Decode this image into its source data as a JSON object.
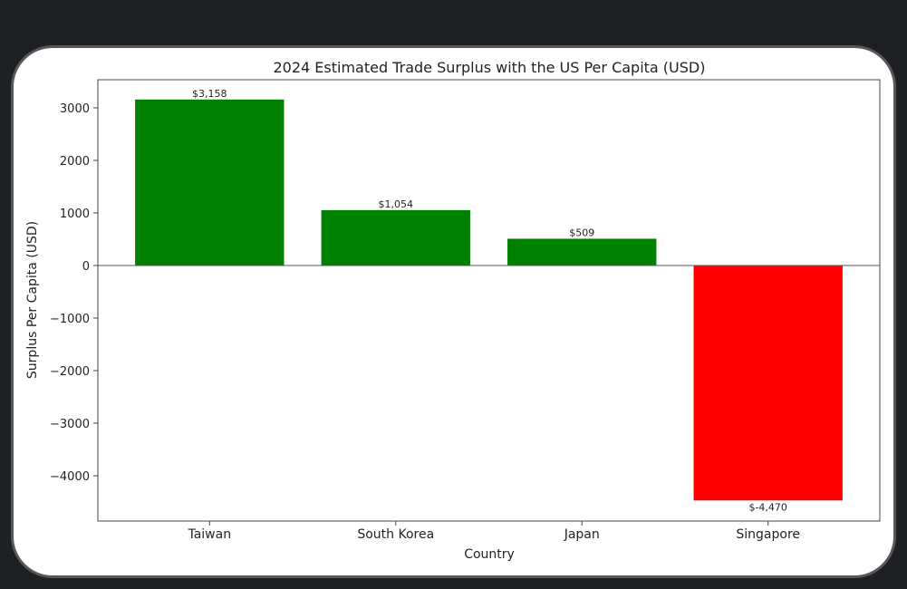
{
  "chart_data": {
    "type": "bar",
    "title": "2024 Estimated Trade Surplus with the US Per Capita (USD)",
    "xlabel": "Country",
    "ylabel": "Surplus Per Capita (USD)",
    "categories": [
      "Taiwan",
      "South Korea",
      "Japan",
      "Singapore"
    ],
    "values": [
      3158,
      1054,
      509,
      -4470
    ],
    "data_labels": [
      "$3,158",
      "$1,054",
      "$509",
      "$-4,470"
    ],
    "colors": [
      "#008000",
      "#008000",
      "#008000",
      "#ff0000"
    ],
    "yticks": [
      3000,
      2000,
      1000,
      0,
      -1000,
      -2000,
      -3000,
      -4000
    ],
    "ytick_labels": [
      "3000",
      "2000",
      "1000",
      "0",
      "−1000",
      "−2000",
      "−3000",
      "−4000"
    ],
    "ylim": [
      -4862,
      3534
    ],
    "grid": false,
    "zero_line": true
  }
}
